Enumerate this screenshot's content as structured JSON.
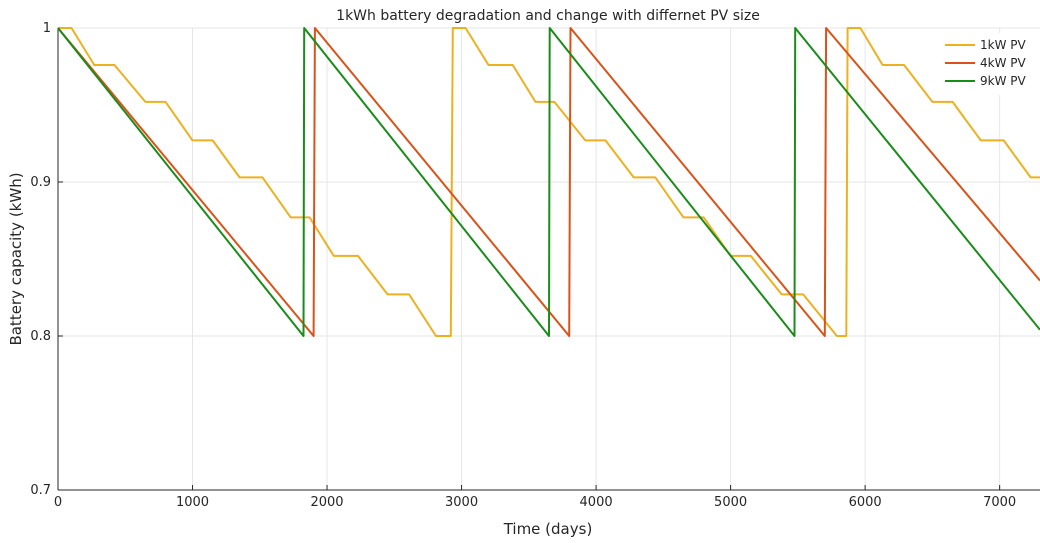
{
  "chart_data": {
    "type": "line",
    "title": "1kWh battery degradation and change with differnet PV size",
    "xlabel": "Time (days)",
    "ylabel": "Battery capacity (kWh)",
    "xlim": [
      0,
      7300
    ],
    "ylim": [
      0.7,
      1.0
    ],
    "xticks": [
      0,
      1000,
      2000,
      3000,
      4000,
      5000,
      6000,
      7000
    ],
    "yticks": [
      0.7,
      0.8,
      0.9,
      1.0
    ],
    "xtick_labels": [
      "0",
      "1000",
      "2000",
      "3000",
      "4000",
      "5000",
      "6000",
      "7000"
    ],
    "ytick_labels": [
      "0.7",
      "0.8",
      "0.9",
      "1"
    ],
    "grid": true,
    "legend_position": "top-right",
    "series": [
      {
        "name": "1kW PV",
        "color": "#EDB120",
        "x": [
          0,
          100,
          270,
          420,
          650,
          800,
          1000,
          1150,
          1350,
          1520,
          1730,
          1870,
          2050,
          2230,
          2450,
          2610,
          2810,
          2920,
          2935,
          3030,
          3200,
          3380,
          3550,
          3690,
          3920,
          4070,
          4280,
          4440,
          4650,
          4800,
          5000,
          5150,
          5380,
          5540,
          5790,
          5860,
          5870,
          5965,
          6130,
          6290,
          6500,
          6650,
          6860,
          7030,
          7230,
          7300
        ],
        "y": [
          1.0,
          1.0,
          0.976,
          0.976,
          0.952,
          0.952,
          0.927,
          0.927,
          0.903,
          0.903,
          0.877,
          0.877,
          0.852,
          0.852,
          0.827,
          0.827,
          0.8,
          0.8,
          1.0,
          1.0,
          0.976,
          0.976,
          0.952,
          0.952,
          0.927,
          0.927,
          0.903,
          0.903,
          0.877,
          0.877,
          0.852,
          0.852,
          0.827,
          0.827,
          0.8,
          0.8,
          1.0,
          1.0,
          0.976,
          0.976,
          0.952,
          0.952,
          0.927,
          0.927,
          0.903,
          0.903
        ]
      },
      {
        "name": "4kW PV",
        "color": "#D95319",
        "x": [
          0,
          1900,
          1910,
          3800,
          3810,
          5700,
          5710,
          7300
        ],
        "y": [
          1.0,
          0.8,
          1.0,
          0.8,
          1.0,
          0.8,
          1.0,
          0.836
        ]
      },
      {
        "name": "9kW PV",
        "color": "#1A8C1A",
        "x": [
          0,
          1825,
          1830,
          3650,
          3655,
          5475,
          5480,
          7300
        ],
        "y": [
          1.0,
          0.8,
          1.0,
          0.8,
          1.0,
          0.8,
          1.0,
          0.804
        ]
      }
    ]
  }
}
